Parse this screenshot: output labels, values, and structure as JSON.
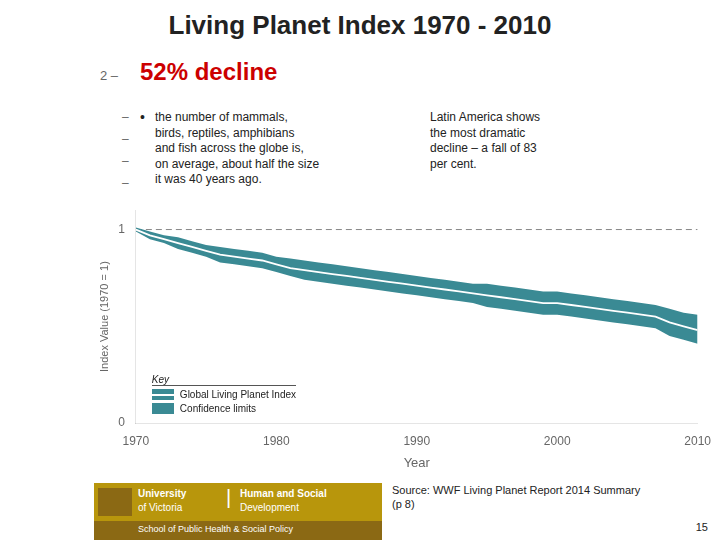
{
  "chart_data": {
    "type": "line",
    "title": "Living Planet Index 1970 - 2010",
    "xlabel": "Year",
    "ylabel": "Index Value (1970 = 1)",
    "x": [
      1970,
      1971,
      1972,
      1973,
      1974,
      1975,
      1976,
      1977,
      1978,
      1979,
      1980,
      1981,
      1982,
      1983,
      1984,
      1985,
      1986,
      1987,
      1988,
      1989,
      1990,
      1991,
      1992,
      1993,
      1994,
      1995,
      1996,
      1997,
      1998,
      1999,
      2000,
      2001,
      2002,
      2003,
      2004,
      2005,
      2006,
      2007,
      2008,
      2009,
      2010
    ],
    "series": [
      {
        "name": "Global Living Planet Index",
        "color": "#FFFFFF",
        "values": [
          1.0,
          0.97,
          0.95,
          0.93,
          0.91,
          0.89,
          0.87,
          0.86,
          0.85,
          0.84,
          0.82,
          0.8,
          0.79,
          0.78,
          0.77,
          0.76,
          0.75,
          0.74,
          0.73,
          0.72,
          0.71,
          0.7,
          0.69,
          0.68,
          0.67,
          0.66,
          0.65,
          0.64,
          0.63,
          0.62,
          0.62,
          0.61,
          0.6,
          0.59,
          0.58,
          0.57,
          0.56,
          0.55,
          0.52,
          0.5,
          0.48
        ]
      },
      {
        "name": "Confidence limits",
        "color": "#3A8A94",
        "upper": [
          1.01,
          0.99,
          0.97,
          0.96,
          0.94,
          0.92,
          0.91,
          0.9,
          0.89,
          0.88,
          0.86,
          0.85,
          0.84,
          0.83,
          0.82,
          0.81,
          0.8,
          0.79,
          0.78,
          0.77,
          0.76,
          0.75,
          0.74,
          0.73,
          0.72,
          0.72,
          0.71,
          0.7,
          0.69,
          0.68,
          0.68,
          0.67,
          0.66,
          0.65,
          0.64,
          0.63,
          0.62,
          0.61,
          0.59,
          0.57,
          0.56
        ],
        "lower": [
          0.99,
          0.95,
          0.93,
          0.9,
          0.88,
          0.86,
          0.83,
          0.82,
          0.81,
          0.8,
          0.78,
          0.76,
          0.74,
          0.73,
          0.72,
          0.71,
          0.7,
          0.69,
          0.68,
          0.67,
          0.66,
          0.65,
          0.64,
          0.63,
          0.62,
          0.6,
          0.59,
          0.58,
          0.57,
          0.56,
          0.56,
          0.55,
          0.54,
          0.53,
          0.52,
          0.51,
          0.5,
          0.49,
          0.45,
          0.43,
          0.41
        ]
      }
    ],
    "reference_lines": [
      {
        "value": 1,
        "color": "#888888",
        "line_style": "dashed"
      }
    ],
    "xlim": [
      1970,
      2010
    ],
    "ylim": [
      0,
      1.1
    ],
    "xticks": [
      1970,
      1980,
      1990,
      2000,
      2010
    ],
    "yticks": [
      0,
      1
    ],
    "grid": false,
    "legend": "lower left",
    "annotations": [
      {
        "text": "2 –"
      },
      {
        "text": "52% decline",
        "color": "#CC0000"
      },
      {
        "text": "–"
      },
      {
        "text": "–"
      },
      {
        "text": "–"
      },
      {
        "text": "–"
      },
      {
        "text": "•"
      },
      {
        "text": "the number of mammals,\nbirds, reptiles, amphibians\nand fish across the globe is,\non average, about half the size\nit was 40 years ago."
      },
      {
        "text": "Latin America shows\nthe most dramatic\ndecline – a fall of 83\nper cent."
      },
      {
        "text": "Key"
      },
      {
        "text": "University"
      },
      {
        "text": "of Victoria"
      },
      {
        "text": "|"
      },
      {
        "text": "Human and Social"
      },
      {
        "text": "Development"
      },
      {
        "text": "School of Public Health & Social Policy"
      },
      {
        "text": "Source:  WWF Living Planet Report 2014 Summary\n(p 8)"
      },
      {
        "text": "15"
      }
    ]
  }
}
